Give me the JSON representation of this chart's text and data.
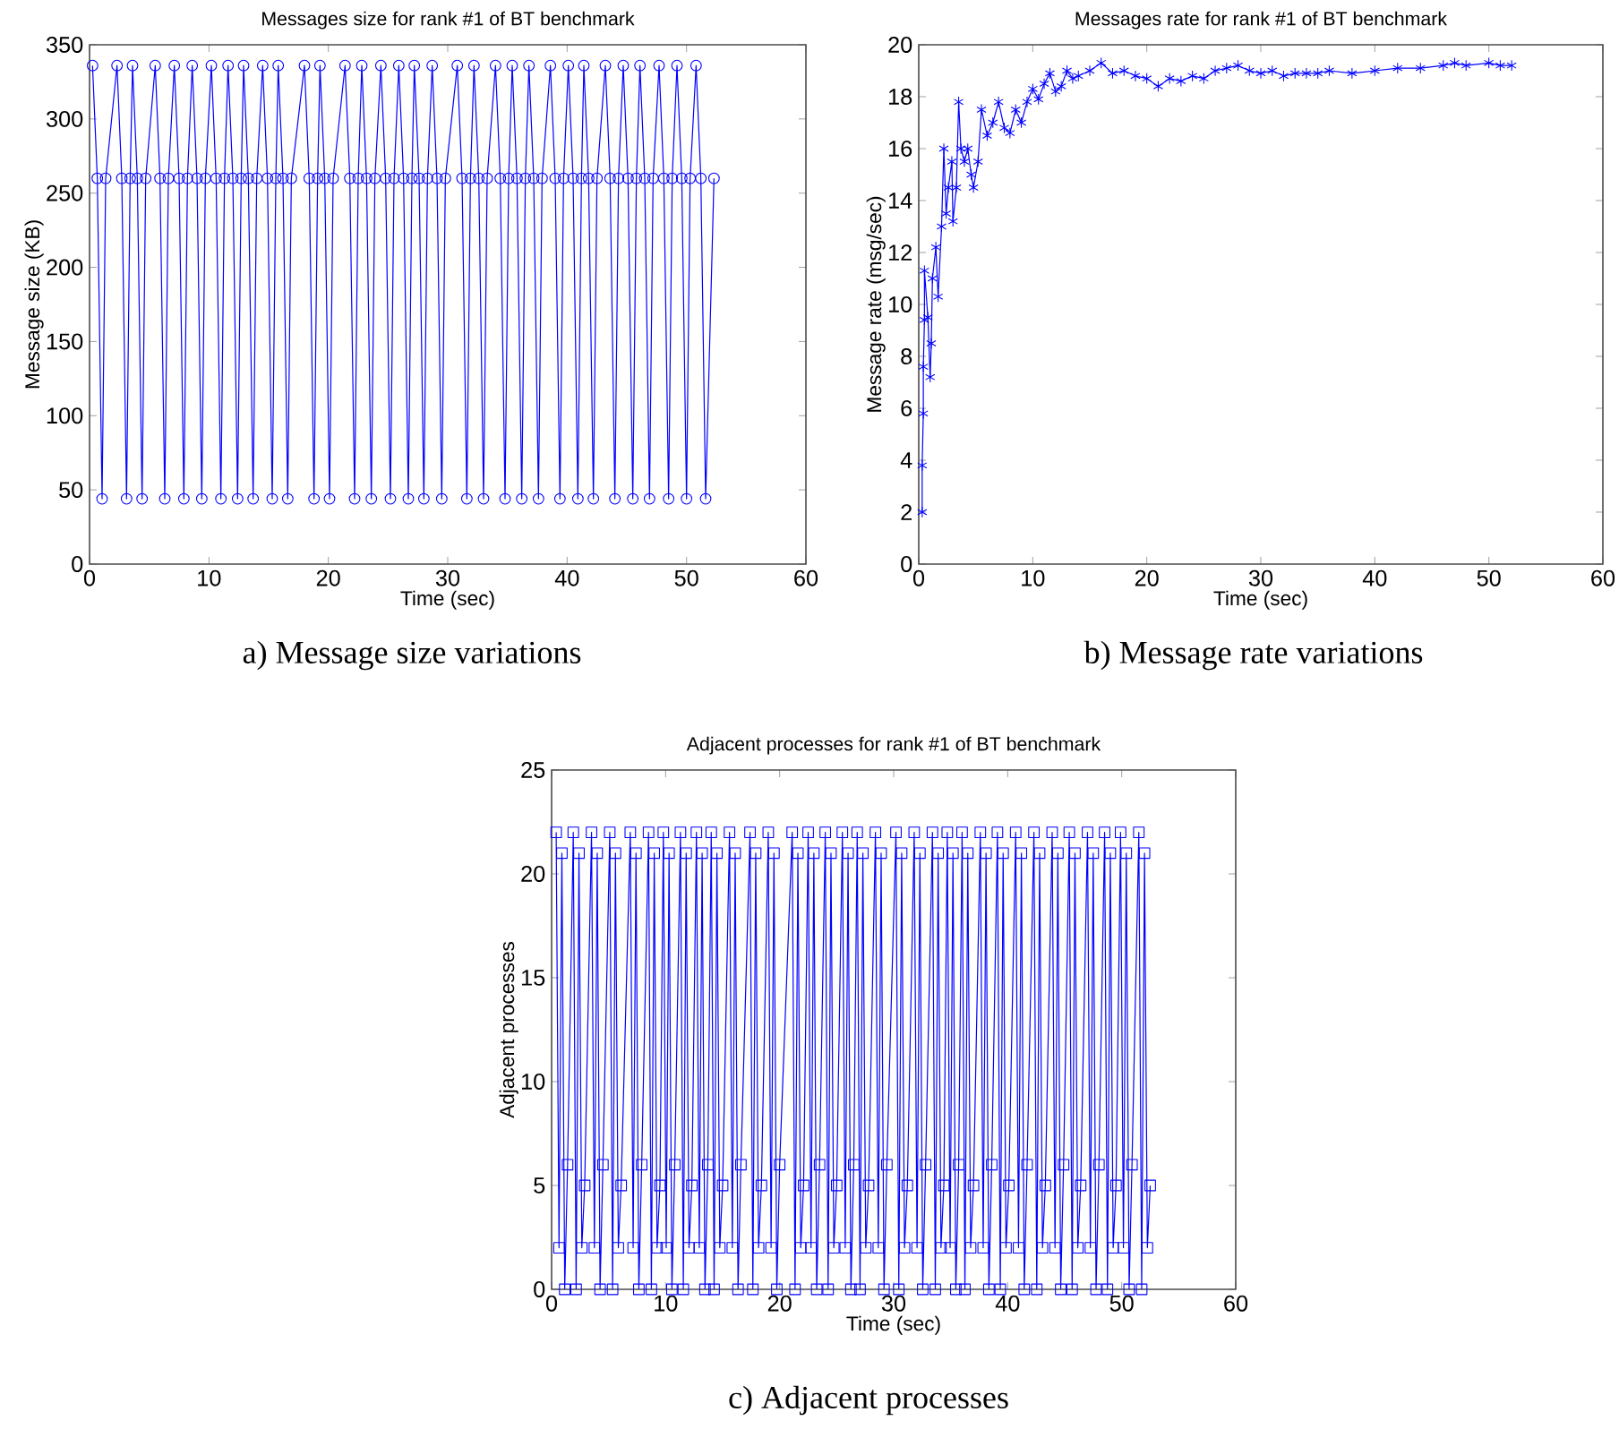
{
  "chart_data": [
    {
      "type": "line",
      "title": "Messages size for rank #1 of BT benchmark",
      "xlabel": "Time (sec)",
      "ylabel": "Message size (KB)",
      "annotations": [
        "a) Message size variations"
      ],
      "marker": "circle",
      "xlim": [
        0,
        60
      ],
      "ylim": [
        0,
        350
      ],
      "xticks": [
        0,
        10,
        20,
        30,
        40,
        50,
        60
      ],
      "yticks": [
        0,
        50,
        100,
        150,
        200,
        250,
        300,
        350
      ],
      "x": [
        0.25,
        0.65,
        1.05,
        1.35,
        2.3,
        2.7,
        3.1,
        3.4,
        3.6,
        4.0,
        4.4,
        4.7,
        5.5,
        5.9,
        6.3,
        6.6,
        7.1,
        7.5,
        7.9,
        8.2,
        8.6,
        9.0,
        9.4,
        9.7,
        10.2,
        10.6,
        11.0,
        11.3,
        11.6,
        12.0,
        12.4,
        12.7,
        12.9,
        13.3,
        13.7,
        14.0,
        14.5,
        14.9,
        15.3,
        15.6,
        15.8,
        16.2,
        16.6,
        16.9,
        18.0,
        18.4,
        18.8,
        19.1,
        19.3,
        19.7,
        20.1,
        20.4,
        21.4,
        21.8,
        22.2,
        22.5,
        22.8,
        23.2,
        23.6,
        23.9,
        24.4,
        24.8,
        25.2,
        25.5,
        25.9,
        26.3,
        26.7,
        27.0,
        27.2,
        27.6,
        28.0,
        28.3,
        28.7,
        29.1,
        29.5,
        29.8,
        30.8,
        31.2,
        31.6,
        31.9,
        32.2,
        32.6,
        33.0,
        33.3,
        34.0,
        34.4,
        34.8,
        35.1,
        35.4,
        35.8,
        36.2,
        36.5,
        36.8,
        37.2,
        37.6,
        37.9,
        38.6,
        39.0,
        39.4,
        39.7,
        40.1,
        40.5,
        40.9,
        41.2,
        41.4,
        41.8,
        42.2,
        42.5,
        43.2,
        43.6,
        44.0,
        44.3,
        44.7,
        45.1,
        45.5,
        45.8,
        46.1,
        46.5,
        46.9,
        47.2,
        47.7,
        48.1,
        48.5,
        48.8,
        49.2,
        49.6,
        50.0,
        50.3,
        50.8,
        51.2,
        51.6,
        52.3
      ],
      "series": [
        {
          "color": "#0000ff",
          "values": [
            336,
            260,
            44,
            260,
            336,
            260,
            44,
            260,
            336,
            260,
            44,
            260,
            336,
            260,
            44,
            260,
            336,
            260,
            44,
            260,
            336,
            260,
            44,
            260,
            336,
            260,
            44,
            260,
            336,
            260,
            44,
            260,
            336,
            260,
            44,
            260,
            336,
            260,
            44,
            260,
            336,
            260,
            44,
            260,
            336,
            260,
            44,
            260,
            336,
            260,
            44,
            260,
            336,
            260,
            44,
            260,
            336,
            260,
            44,
            260,
            336,
            260,
            44,
            260,
            336,
            260,
            44,
            260,
            336,
            260,
            44,
            260,
            336,
            260,
            44,
            260,
            336,
            260,
            44,
            260,
            336,
            260,
            44,
            260,
            336,
            260,
            44,
            260,
            336,
            260,
            44,
            260,
            336,
            260,
            44,
            260,
            336,
            260,
            44,
            260,
            336,
            260,
            44,
            260,
            336,
            260,
            44,
            260,
            336,
            260,
            44,
            260,
            336,
            260,
            44,
            260,
            336,
            260,
            44,
            260,
            336,
            260,
            44,
            260,
            336,
            260,
            44,
            260,
            336,
            260,
            44,
            260
          ]
        }
      ]
    },
    {
      "type": "line",
      "title": "Messages rate for rank #1 of BT benchmark",
      "xlabel": "Time (sec)",
      "ylabel": "Message rate (msg/sec)",
      "annotations": [
        "b) Message rate variations"
      ],
      "marker": "cross",
      "xlim": [
        0,
        60
      ],
      "ylim": [
        0,
        20
      ],
      "xticks": [
        0,
        10,
        20,
        30,
        40,
        50,
        60
      ],
      "yticks": [
        0,
        2,
        4,
        6,
        8,
        10,
        12,
        14,
        16,
        18,
        20
      ],
      "x": [
        0.3,
        0.3,
        0.4,
        0.4,
        0.5,
        0.5,
        0.8,
        1.0,
        1.1,
        1.2,
        1.5,
        1.7,
        2.0,
        2.2,
        2.4,
        2.6,
        2.9,
        3.0,
        3.3,
        3.5,
        3.7,
        4.0,
        4.3,
        4.6,
        4.8,
        5.2,
        5.5,
        6.0,
        6.5,
        7.0,
        7.5,
        8.0,
        8.5,
        9.0,
        9.5,
        10.0,
        10.5,
        11.0,
        11.5,
        12.0,
        12.5,
        13.0,
        13.5,
        14.0,
        15.0,
        16.0,
        17.0,
        18.0,
        19.0,
        20.0,
        21.0,
        22.0,
        23.0,
        24.0,
        25.0,
        26.0,
        27.0,
        28.0,
        29.0,
        30.0,
        31.0,
        32.0,
        33.0,
        34.0,
        35.0,
        36.0,
        38.0,
        40.0,
        42.0,
        44.0,
        46.0,
        47.0,
        48.0,
        50.0,
        51.0,
        52.0
      ],
      "series": [
        {
          "color": "#0000ff",
          "values": [
            2,
            3.8,
            5.8,
            7.6,
            9.4,
            11.3,
            9.5,
            7.2,
            8.5,
            11.0,
            12.2,
            10.3,
            13.0,
            16.0,
            13.5,
            14.5,
            15.5,
            13.2,
            14.5,
            17.8,
            16.0,
            15.5,
            16.0,
            15.0,
            14.5,
            15.5,
            17.5,
            16.5,
            17.0,
            17.8,
            16.8,
            16.6,
            17.5,
            17.0,
            17.8,
            18.3,
            17.9,
            18.5,
            18.9,
            18.2,
            18.4,
            19.0,
            18.7,
            18.8,
            19.0,
            19.3,
            18.9,
            19.0,
            18.8,
            18.7,
            18.4,
            18.7,
            18.6,
            18.8,
            18.7,
            19.0,
            19.1,
            19.2,
            19.0,
            18.9,
            19.0,
            18.8,
            18.9,
            18.9,
            18.9,
            19.0,
            18.9,
            19.0,
            19.1,
            19.1,
            19.2,
            19.3,
            19.2,
            19.3,
            19.2,
            19.2
          ]
        }
      ]
    },
    {
      "type": "line",
      "title": "Adjacent processes for rank #1 of BT benchmark",
      "xlabel": "Time (sec)",
      "ylabel": "Adjacent processes",
      "annotations": [
        "c) Adjacent processes"
      ],
      "marker": "square",
      "xlim": [
        0,
        60
      ],
      "ylim": [
        0,
        25
      ],
      "xticks": [
        0,
        10,
        20,
        30,
        40,
        50,
        60
      ],
      "yticks": [
        0,
        5,
        10,
        15,
        20,
        25
      ],
      "x": [
        0.4,
        0.65,
        0.9,
        1.15,
        1.4,
        1.9,
        2.15,
        2.4,
        2.65,
        2.9,
        3.5,
        3.75,
        4.0,
        4.25,
        4.5,
        5.1,
        5.35,
        5.6,
        5.85,
        6.1,
        6.9,
        7.15,
        7.4,
        7.65,
        7.9,
        8.5,
        8.75,
        9.0,
        9.25,
        9.5,
        9.8,
        10.05,
        10.3,
        10.55,
        10.8,
        11.3,
        11.55,
        11.8,
        12.05,
        12.3,
        12.7,
        12.95,
        13.2,
        13.45,
        13.7,
        14.0,
        14.25,
        14.5,
        14.75,
        15.0,
        15.6,
        15.85,
        16.1,
        16.35,
        16.6,
        17.4,
        17.65,
        17.9,
        18.15,
        18.4,
        19.0,
        19.25,
        19.5,
        19.75,
        20.0,
        21.1,
        21.35,
        21.6,
        21.85,
        22.1,
        22.5,
        22.75,
        23.0,
        23.25,
        23.5,
        24.0,
        24.25,
        24.5,
        24.75,
        25.0,
        25.5,
        25.75,
        26.0,
        26.25,
        26.5,
        26.8,
        27.05,
        27.3,
        27.55,
        27.8,
        28.4,
        28.65,
        28.9,
        29.15,
        29.4,
        30.2,
        30.45,
        30.7,
        30.95,
        31.2,
        31.8,
        32.05,
        32.3,
        32.55,
        32.8,
        33.4,
        33.65,
        33.9,
        34.15,
        34.4,
        34.7,
        34.95,
        35.2,
        35.45,
        35.7,
        36.0,
        36.25,
        36.5,
        36.75,
        37.0,
        37.6,
        37.85,
        38.1,
        38.35,
        38.6,
        39.1,
        39.35,
        39.6,
        39.85,
        40.1,
        40.7,
        40.95,
        41.2,
        41.45,
        41.7,
        42.3,
        42.55,
        42.8,
        43.05,
        43.3,
        43.9,
        44.15,
        44.4,
        44.65,
        44.9,
        45.4,
        45.65,
        45.9,
        46.15,
        46.4,
        47.0,
        47.25,
        47.5,
        47.75,
        48.0,
        48.5,
        48.75,
        49.0,
        49.25,
        49.5,
        49.9,
        50.15,
        50.4,
        50.65,
        50.9,
        51.5,
        51.75,
        52.0,
        52.25,
        52.5
      ],
      "series": [
        {
          "color": "#0000ff",
          "values": [
            22,
            2,
            21,
            0,
            6,
            22,
            0,
            21,
            2,
            5,
            22,
            2,
            21,
            0,
            6,
            22,
            0,
            21,
            2,
            5,
            22,
            2,
            21,
            0,
            6,
            22,
            0,
            21,
            2,
            5,
            22,
            2,
            21,
            0,
            6,
            22,
            0,
            21,
            2,
            5,
            22,
            2,
            21,
            0,
            6,
            22,
            0,
            21,
            2,
            5,
            22,
            2,
            21,
            0,
            6,
            22,
            0,
            21,
            2,
            5,
            22,
            2,
            21,
            0,
            6,
            22,
            0,
            21,
            2,
            5,
            22,
            2,
            21,
            0,
            6,
            22,
            0,
            21,
            2,
            5,
            22,
            2,
            21,
            0,
            6,
            22,
            0,
            21,
            2,
            5,
            22,
            2,
            21,
            0,
            6,
            22,
            0,
            21,
            2,
            5,
            22,
            2,
            21,
            0,
            6,
            22,
            0,
            21,
            2,
            5,
            22,
            2,
            21,
            0,
            6,
            22,
            0,
            21,
            2,
            5,
            22,
            2,
            21,
            0,
            6,
            22,
            0,
            21,
            2,
            5,
            22,
            2,
            21,
            0,
            6,
            22,
            0,
            21,
            2,
            5,
            22,
            2,
            21,
            0,
            6,
            22,
            0,
            21,
            2,
            5,
            22,
            2,
            21,
            0,
            6,
            22,
            0,
            21,
            2,
            5,
            22,
            2,
            21,
            0,
            6,
            22,
            0,
            21,
            2,
            5
          ]
        }
      ]
    }
  ]
}
